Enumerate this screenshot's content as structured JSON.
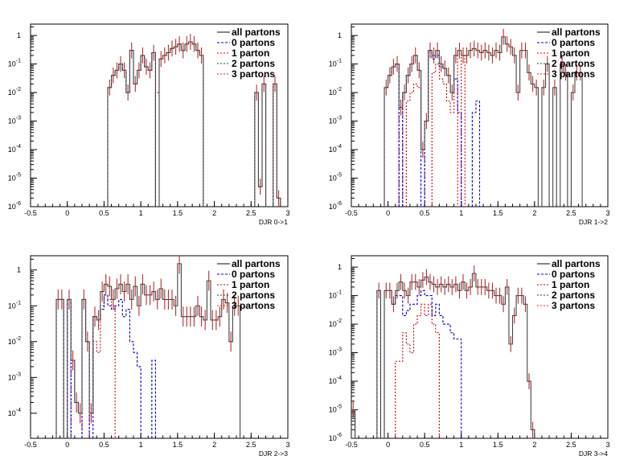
{
  "colors": {
    "all": "#444444",
    "all_err": "#b03030",
    "p0": "#0000cc",
    "p1": "#cc0000",
    "p2": "#006600",
    "p3": "#cc3300"
  },
  "chart_data": [
    {
      "type": "histogram",
      "xlabel": "DJR 0->1",
      "xlim": [
        -0.5,
        3
      ],
      "ylim": [
        1e-06,
        2.5
      ],
      "yscale": "log",
      "xticks": [
        "-0.5",
        "0",
        "0.5",
        "1",
        "1.5",
        "2",
        "2.5",
        "3"
      ],
      "yticks": [
        "10^-6",
        "10^-5",
        "10^-4",
        "10^-3",
        "10^-2",
        "10^-1",
        "1"
      ],
      "legend": [
        "all partons",
        "0 partons",
        "1 parton",
        "2 partons",
        "3 partons"
      ],
      "bin_width": 0.05,
      "series": [
        {
          "name": "all partons",
          "x": [
            0.575,
            0.625,
            0.675,
            0.725,
            0.775,
            0.825,
            0.875,
            0.925,
            0.975,
            1.025,
            1.075,
            1.125,
            1.175,
            1.275,
            1.325,
            1.375,
            1.425,
            1.475,
            1.525,
            1.575,
            1.625,
            1.675,
            1.725,
            1.775,
            1.825,
            2.575,
            2.625,
            2.675,
            2.825,
            2.875
          ],
          "y": [
            0.015,
            0.04,
            0.06,
            0.1,
            0.06,
            0.01,
            0.3,
            0.02,
            0.06,
            0.2,
            0.08,
            0.06,
            0.25,
            0.15,
            0.2,
            0.25,
            0.35,
            0.4,
            0.5,
            0.3,
            0.5,
            0.6,
            0.5,
            0.3,
            0.2,
            0.01,
            5e-06,
            0.02,
            0.02,
            2e-06
          ]
        },
        {
          "name": "0 partons",
          "x": [
            0.575,
            0.625,
            0.675,
            0.725,
            0.775,
            0.825,
            0.875,
            0.925,
            0.975,
            1.025,
            1.075,
            1.125,
            1.175
          ],
          "y": [
            0.015,
            0.04,
            0.06,
            0.1,
            0.06,
            0.01,
            0.3,
            0.02,
            0.06,
            0.2,
            0.08,
            0.06,
            0.25
          ]
        },
        {
          "name": "1 parton",
          "x": [
            1.225,
            1.275,
            1.325,
            1.375,
            1.425,
            1.475,
            1.525,
            1.575,
            1.625,
            1.675,
            1.725,
            1.775,
            1.825,
            2.575,
            2.625,
            2.675,
            2.825,
            2.875
          ],
          "y": [
            0.01,
            0.15,
            0.2,
            0.25,
            0.35,
            0.4,
            0.5,
            0.3,
            0.5,
            0.6,
            0.5,
            0.3,
            0.2,
            0.01,
            5e-06,
            0.02,
            0.02,
            2e-06
          ]
        }
      ]
    },
    {
      "type": "histogram",
      "xlabel": "DJR 1->2",
      "xlim": [
        -0.5,
        3
      ],
      "ylim": [
        1e-06,
        2.5
      ],
      "yscale": "log",
      "xticks": [
        "-0.5",
        "0",
        "0.5",
        "1",
        "1.5",
        "2",
        "2.5",
        "3"
      ],
      "yticks": [
        "10^-6",
        "10^-5",
        "10^-4",
        "10^-3",
        "10^-2",
        "10^-1",
        "1"
      ],
      "legend": [
        "all partons",
        "0 partons",
        "1 parton",
        "2 partons",
        "3 partons"
      ],
      "bin_width": 0.05,
      "series": [
        {
          "name": "all partons",
          "x": [
            -0.025,
            0.025,
            0.075,
            0.125,
            0.175,
            0.225,
            0.275,
            0.325,
            0.375,
            0.425,
            0.475,
            0.525,
            0.575,
            0.625,
            0.675,
            0.725,
            0.775,
            0.825,
            0.875,
            0.925,
            0.975,
            1.025,
            1.075,
            1.125,
            1.175,
            1.225,
            1.275,
            1.325,
            1.375,
            1.425,
            1.475,
            1.525,
            1.575,
            1.625,
            1.675,
            1.725,
            1.775,
            1.825,
            1.875,
            1.925,
            1.975,
            2.025,
            2.125,
            2.175,
            2.275,
            2.375,
            2.425,
            2.525,
            2.575,
            2.625
          ],
          "y": [
            0.015,
            0.04,
            0.08,
            0.1,
            0.003,
            0.01,
            0.04,
            0.1,
            0.2,
            0.06,
            0.0001,
            0.001,
            0.3,
            0.2,
            0.3,
            0.1,
            0.07,
            0.04,
            0.01,
            0.2,
            0.3,
            0.2,
            0.2,
            0.3,
            0.35,
            0.3,
            0.25,
            0.3,
            0.25,
            0.2,
            0.3,
            0.25,
            0.9,
            0.5,
            0.4,
            0.2,
            0.01,
            0.3,
            0.3,
            0.05,
            0.02,
            0.015,
            0.015,
            0.1,
            0.015,
            0.1,
            0.05,
            0.01,
            0.05,
            0.05
          ]
        },
        {
          "name": "0 partons",
          "x": [
            -0.025,
            0.025,
            0.075,
            0.125,
            0.225,
            0.275,
            0.325,
            0.375,
            0.425,
            0.525,
            0.575,
            0.625,
            0.675,
            0.725,
            0.775,
            0.825,
            0.875,
            0.925,
            0.975,
            1.175,
            1.225
          ],
          "y": [
            0.015,
            0.04,
            0.08,
            0.1,
            0.01,
            0.04,
            0.1,
            0.2,
            0.06,
            0.001,
            0.3,
            0.15,
            0.2,
            0.08,
            0.07,
            0.04,
            0.01,
            0.03,
            0.002,
            0.002,
            0.005
          ]
        },
        {
          "name": "1 parton",
          "x": [
            0.175,
            0.275,
            0.325,
            0.375,
            0.425,
            0.475,
            0.625,
            0.675,
            0.725,
            0.775,
            0.825,
            0.875,
            0.925,
            1.025
          ],
          "y": [
            0.003,
            0.005,
            0.01,
            0.02,
            0.015,
            0.0001,
            0.05,
            0.1,
            0.03,
            0.02,
            0.005,
            0.002,
            0.2,
            0.2
          ]
        }
      ]
    },
    {
      "type": "histogram",
      "xlabel": "DJR 2->3",
      "xlim": [
        -0.5,
        3
      ],
      "ylim": [
        2e-05,
        2.5
      ],
      "yscale": "log",
      "xticks": [
        "-0.5",
        "0",
        "0.5",
        "1",
        "1.5",
        "2",
        "2.5",
        "3"
      ],
      "yticks": [
        "10^-4",
        "10^-3",
        "10^-2",
        "10^-1",
        "1"
      ],
      "legend": [
        "all partons",
        "0 partons",
        "1 parton",
        "2 partons",
        "3 partons"
      ],
      "bin_width": 0.05,
      "series": [
        {
          "name": "all partons",
          "x": [
            -0.125,
            -0.075,
            0.025,
            0.075,
            0.125,
            0.175,
            0.225,
            0.275,
            0.325,
            0.375,
            0.425,
            0.475,
            0.525,
            0.575,
            0.625,
            0.675,
            0.725,
            0.775,
            0.825,
            0.875,
            0.925,
            0.975,
            1.025,
            1.075,
            1.125,
            1.175,
            1.225,
            1.275,
            1.325,
            1.375,
            1.425,
            1.475,
            1.525,
            1.575,
            1.625,
            1.675,
            1.725,
            1.775,
            1.825,
            1.875,
            1.925,
            1.975,
            2.025,
            2.075,
            2.125,
            2.175,
            2.225,
            2.275,
            2.325
          ],
          "y": [
            0.15,
            0.15,
            0.15,
            0.003,
            0.0002,
            0.0001,
            0.15,
            0.01,
            0.0001,
            0.05,
            0.04,
            0.25,
            0.4,
            0.35,
            0.15,
            0.3,
            0.4,
            0.25,
            0.4,
            0.15,
            0.35,
            0.1,
            0.4,
            0.2,
            0.2,
            0.25,
            0.15,
            0.3,
            0.15,
            0.15,
            0.15,
            0.1,
            1.5,
            0.05,
            0.05,
            0.05,
            0.05,
            0.1,
            0.05,
            0.04,
            0.5,
            0.04,
            0.04,
            0.05,
            0.15,
            0.12,
            0.01,
            0.1,
            0.1
          ]
        },
        {
          "name": "0 partons",
          "x": [
            -0.125,
            -0.075,
            0.025,
            0.225,
            0.275,
            0.375,
            0.425,
            0.475,
            0.525,
            0.575,
            0.625,
            0.675,
            0.725,
            0.775,
            0.825,
            0.875,
            0.925,
            0.975,
            1.175
          ],
          "y": [
            0.15,
            0.15,
            0.15,
            0.15,
            0.01,
            0.05,
            0.04,
            0.08,
            0.2,
            0.1,
            0.08,
            0.1,
            0.15,
            0.05,
            0.08,
            0.01,
            0.005,
            0.002,
            0.003
          ]
        },
        {
          "name": "1 parton",
          "x": [
            0.075,
            0.125,
            0.175,
            0.325,
            0.375,
            0.425,
            0.475,
            0.525,
            0.575,
            0.625
          ],
          "y": [
            0.003,
            0.0002,
            0.0001,
            0.0001,
            0.01,
            0.005,
            0.1,
            0.2,
            0.15,
            0.1
          ]
        }
      ]
    },
    {
      "type": "histogram",
      "xlabel": "DJR 3->4",
      "xlim": [
        -0.5,
        3
      ],
      "ylim": [
        1e-06,
        2.5
      ],
      "yscale": "log",
      "xticks": [
        "-0.5",
        "0",
        "0.5",
        "1",
        "1.5",
        "2",
        "2.5",
        "3"
      ],
      "yticks": [
        "10^-6",
        "10^-5",
        "10^-4",
        "10^-3",
        "10^-2",
        "10^-1",
        "1"
      ],
      "legend": [
        "all partons",
        "0 partons",
        "1 parton",
        "2 partons",
        "3 partons"
      ],
      "bin_width": 0.05,
      "series": [
        {
          "name": "all partons",
          "x": [
            -0.475,
            -0.125,
            -0.025,
            0.025,
            0.075,
            0.125,
            0.175,
            0.225,
            0.275,
            0.325,
            0.375,
            0.425,
            0.475,
            0.525,
            0.575,
            0.625,
            0.675,
            0.725,
            0.775,
            0.825,
            0.875,
            0.925,
            0.975,
            1.025,
            1.075,
            1.125,
            1.175,
            1.225,
            1.275,
            1.325,
            1.375,
            1.425,
            1.475,
            1.525,
            1.575,
            1.625,
            1.675,
            1.725,
            1.775,
            1.825,
            1.875,
            1.925,
            1.975
          ],
          "y": [
            1e-05,
            0.15,
            0.15,
            0.15,
            0.05,
            0.15,
            0.3,
            0.15,
            0.1,
            0.3,
            0.3,
            0.2,
            0.35,
            0.45,
            0.3,
            0.25,
            0.2,
            0.25,
            0.2,
            0.25,
            0.2,
            0.25,
            0.15,
            0.3,
            0.15,
            0.2,
            0.6,
            0.2,
            0.2,
            0.2,
            0.15,
            0.15,
            0.1,
            0.1,
            0.05,
            0.2,
            0.002,
            0.02,
            0.1,
            0.1,
            0.05,
            0.0001,
            2e-06
          ]
        },
        {
          "name": "0 partons",
          "x": [
            -0.475,
            -0.125,
            -0.025,
            0.025,
            0.075,
            0.125,
            0.175,
            0.225,
            0.275,
            0.325,
            0.375,
            0.425,
            0.475,
            0.525,
            0.575,
            0.625,
            0.675,
            0.725,
            0.775,
            0.825,
            0.875,
            0.925,
            0.975
          ],
          "y": [
            1e-05,
            0.15,
            0.15,
            0.15,
            0.05,
            0.1,
            0.1,
            0.02,
            0.03,
            0.05,
            0.05,
            0.1,
            0.15,
            0.1,
            0.1,
            0.02,
            0.05,
            0.02,
            0.01,
            0.01,
            0.005,
            0.003,
            0.003
          ]
        },
        {
          "name": "1 parton",
          "x": [
            0.125,
            0.175,
            0.225,
            0.275,
            0.325,
            0.375,
            0.425,
            0.475,
            0.525,
            0.575,
            0.625,
            0.675
          ],
          "y": [
            0.0005,
            0.0005,
            0.005,
            0.002,
            0.001,
            0.01,
            0.02,
            0.05,
            0.02,
            0.05,
            0.01,
            0.005
          ]
        }
      ]
    }
  ]
}
